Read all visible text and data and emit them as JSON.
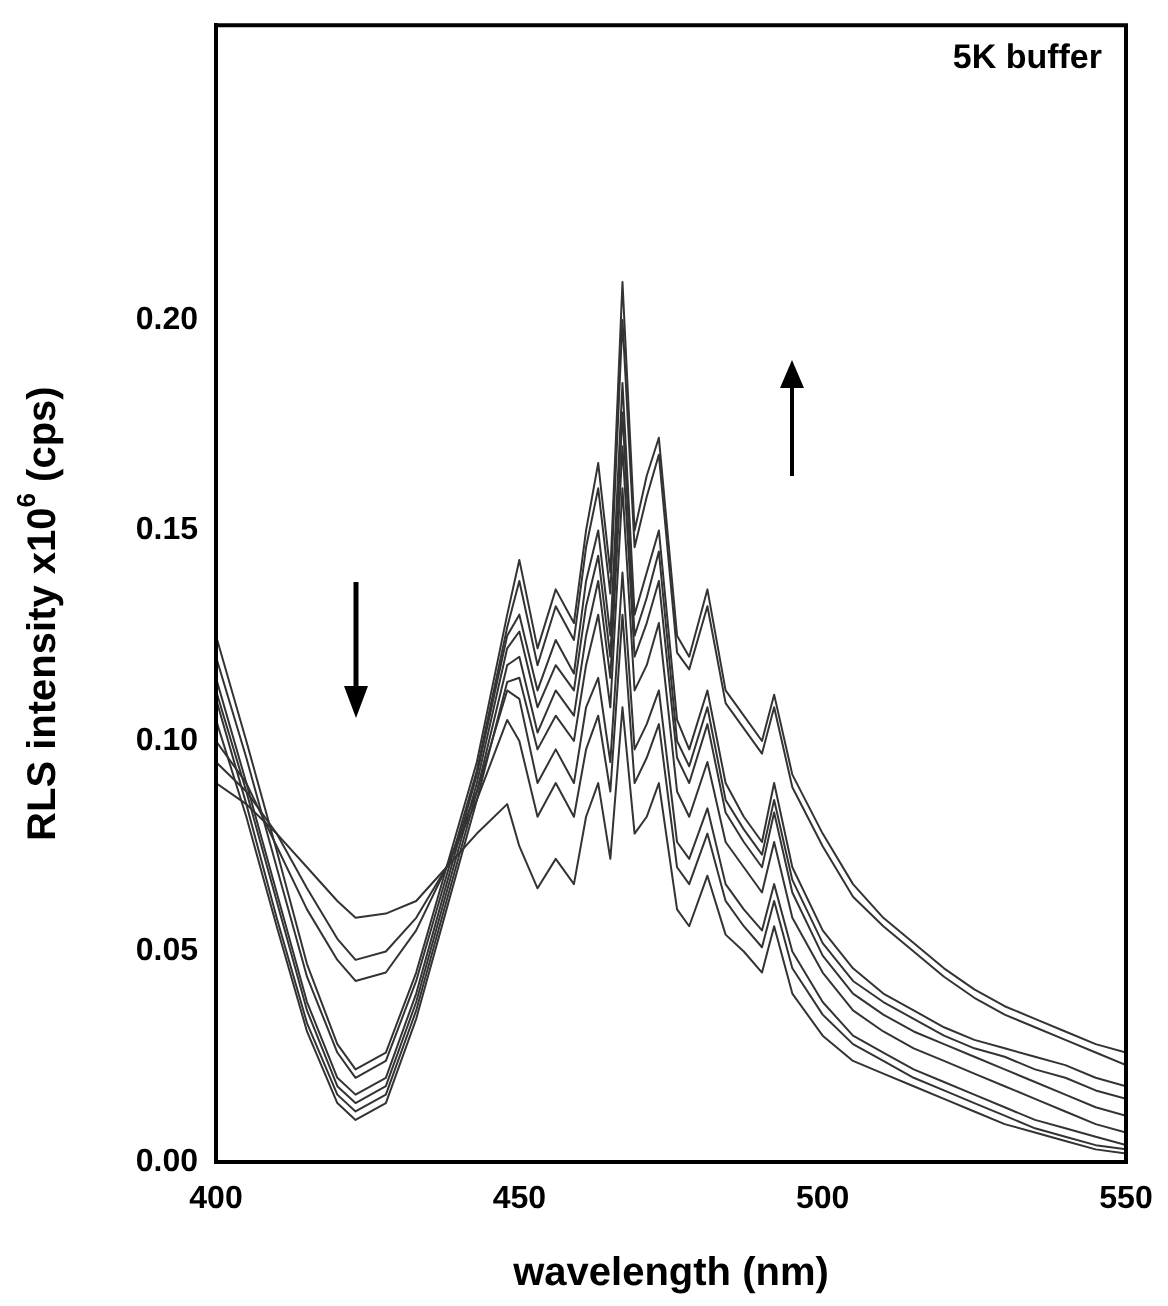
{
  "chart_data": {
    "type": "line",
    "xlabel": "wavelength (nm)",
    "ylabel": "RLS intensity x10$^{6}$ (cps)",
    "annotations": [
      "5K buffer"
    ],
    "x": [
      400,
      405,
      410,
      415,
      420,
      423,
      428,
      433,
      438,
      443,
      448,
      450,
      453,
      456,
      459,
      461,
      463,
      465,
      467,
      469,
      471,
      473,
      476,
      478,
      481,
      484,
      487,
      490,
      492,
      495,
      500,
      505,
      510,
      515,
      520,
      525,
      530,
      535,
      540,
      545,
      550
    ],
    "xlim": [
      400,
      550
    ],
    "xticks": [
      400,
      450,
      500,
      550
    ],
    "ylim": [
      0,
      0.27
    ],
    "yticks": [
      {
        "value": 0,
        "label": "0.00"
      },
      {
        "value": 0.05,
        "label": "0.05"
      },
      {
        "value": 0.1,
        "label": "0.10"
      },
      {
        "value": 0.15,
        "label": "0.15"
      },
      {
        "value": 0.2,
        "label": "0.20"
      }
    ],
    "grid": false,
    "legend": false,
    "marker": "none",
    "line_style": "solid",
    "series": [
      {
        "color": "#333333",
        "values": [
          0.125,
          0.1,
          0.074,
          0.047,
          0.028,
          0.022,
          0.026,
          0.045,
          0.07,
          0.095,
          0.13,
          0.143,
          0.122,
          0.136,
          0.128,
          0.15,
          0.166,
          0.14,
          0.209,
          0.15,
          0.163,
          0.172,
          0.125,
          0.12,
          0.136,
          0.112,
          0.106,
          0.1,
          0.111,
          0.092,
          0.078,
          0.066,
          0.058,
          0.052,
          0.046,
          0.041,
          0.037,
          0.034,
          0.031,
          0.028,
          0.026
        ]
      },
      {
        "color": "#333333",
        "values": [
          0.12,
          0.096,
          0.07,
          0.044,
          0.026,
          0.02,
          0.024,
          0.043,
          0.068,
          0.093,
          0.127,
          0.138,
          0.118,
          0.132,
          0.124,
          0.146,
          0.16,
          0.135,
          0.2,
          0.146,
          0.158,
          0.168,
          0.121,
          0.117,
          0.132,
          0.109,
          0.103,
          0.097,
          0.108,
          0.089,
          0.075,
          0.063,
          0.056,
          0.05,
          0.044,
          0.039,
          0.035,
          0.032,
          0.029,
          0.026,
          0.023
        ]
      },
      {
        "color": "#333333",
        "values": [
          0.115,
          0.09,
          0.064,
          0.038,
          0.02,
          0.016,
          0.02,
          0.04,
          0.066,
          0.092,
          0.125,
          0.13,
          0.112,
          0.124,
          0.116,
          0.138,
          0.15,
          0.125,
          0.185,
          0.13,
          0.14,
          0.15,
          0.105,
          0.098,
          0.112,
          0.09,
          0.082,
          0.076,
          0.09,
          0.07,
          0.055,
          0.046,
          0.04,
          0.036,
          0.032,
          0.029,
          0.027,
          0.025,
          0.023,
          0.02,
          0.018
        ]
      },
      {
        "color": "#333333",
        "values": [
          0.112,
          0.088,
          0.062,
          0.036,
          0.018,
          0.014,
          0.018,
          0.038,
          0.064,
          0.09,
          0.122,
          0.126,
          0.108,
          0.118,
          0.112,
          0.132,
          0.144,
          0.12,
          0.178,
          0.125,
          0.134,
          0.145,
          0.1,
          0.094,
          0.108,
          0.086,
          0.079,
          0.073,
          0.086,
          0.067,
          0.052,
          0.043,
          0.038,
          0.034,
          0.03,
          0.027,
          0.025,
          0.022,
          0.02,
          0.017,
          0.015
        ]
      },
      {
        "color": "#333333",
        "values": [
          0.11,
          0.085,
          0.058,
          0.033,
          0.016,
          0.012,
          0.016,
          0.036,
          0.062,
          0.088,
          0.118,
          0.12,
          0.102,
          0.112,
          0.106,
          0.125,
          0.138,
          0.115,
          0.17,
          0.12,
          0.128,
          0.138,
          0.096,
          0.09,
          0.104,
          0.083,
          0.076,
          0.07,
          0.083,
          0.064,
          0.049,
          0.04,
          0.035,
          0.031,
          0.028,
          0.025,
          0.022,
          0.019,
          0.016,
          0.013,
          0.011
        ]
      },
      {
        "color": "#333333",
        "values": [
          0.105,
          0.082,
          0.056,
          0.031,
          0.014,
          0.01,
          0.014,
          0.034,
          0.06,
          0.086,
          0.114,
          0.115,
          0.098,
          0.106,
          0.1,
          0.118,
          0.13,
          0.108,
          0.16,
          0.112,
          0.118,
          0.128,
          0.088,
          0.082,
          0.095,
          0.076,
          0.07,
          0.064,
          0.076,
          0.058,
          0.045,
          0.036,
          0.031,
          0.027,
          0.024,
          0.021,
          0.018,
          0.015,
          0.012,
          0.009,
          0.007
        ]
      },
      {
        "color": "#333333",
        "values": [
          0.1,
          0.09,
          0.075,
          0.06,
          0.048,
          0.043,
          0.045,
          0.055,
          0.07,
          0.088,
          0.112,
          0.11,
          0.09,
          0.098,
          0.09,
          0.108,
          0.115,
          0.095,
          0.14,
          0.098,
          0.104,
          0.112,
          0.076,
          0.072,
          0.084,
          0.066,
          0.06,
          0.055,
          0.066,
          0.05,
          0.038,
          0.03,
          0.026,
          0.022,
          0.019,
          0.016,
          0.013,
          0.01,
          0.008,
          0.006,
          0.004
        ]
      },
      {
        "color": "#333333",
        "values": [
          0.095,
          0.088,
          0.078,
          0.065,
          0.053,
          0.048,
          0.05,
          0.058,
          0.07,
          0.086,
          0.105,
          0.1,
          0.082,
          0.09,
          0.082,
          0.098,
          0.106,
          0.088,
          0.13,
          0.09,
          0.096,
          0.104,
          0.07,
          0.066,
          0.078,
          0.062,
          0.056,
          0.051,
          0.062,
          0.046,
          0.035,
          0.028,
          0.024,
          0.02,
          0.017,
          0.014,
          0.011,
          0.008,
          0.006,
          0.004,
          0.003
        ]
      },
      {
        "color": "#333333",
        "values": [
          0.09,
          0.085,
          0.078,
          0.07,
          0.062,
          0.058,
          0.059,
          0.062,
          0.07,
          0.078,
          0.085,
          0.075,
          0.065,
          0.072,
          0.066,
          0.082,
          0.09,
          0.072,
          0.108,
          0.078,
          0.082,
          0.09,
          0.06,
          0.056,
          0.068,
          0.054,
          0.05,
          0.045,
          0.056,
          0.04,
          0.03,
          0.024,
          0.021,
          0.018,
          0.015,
          0.012,
          0.009,
          0.007,
          0.005,
          0.003,
          0.002
        ]
      }
    ]
  }
}
